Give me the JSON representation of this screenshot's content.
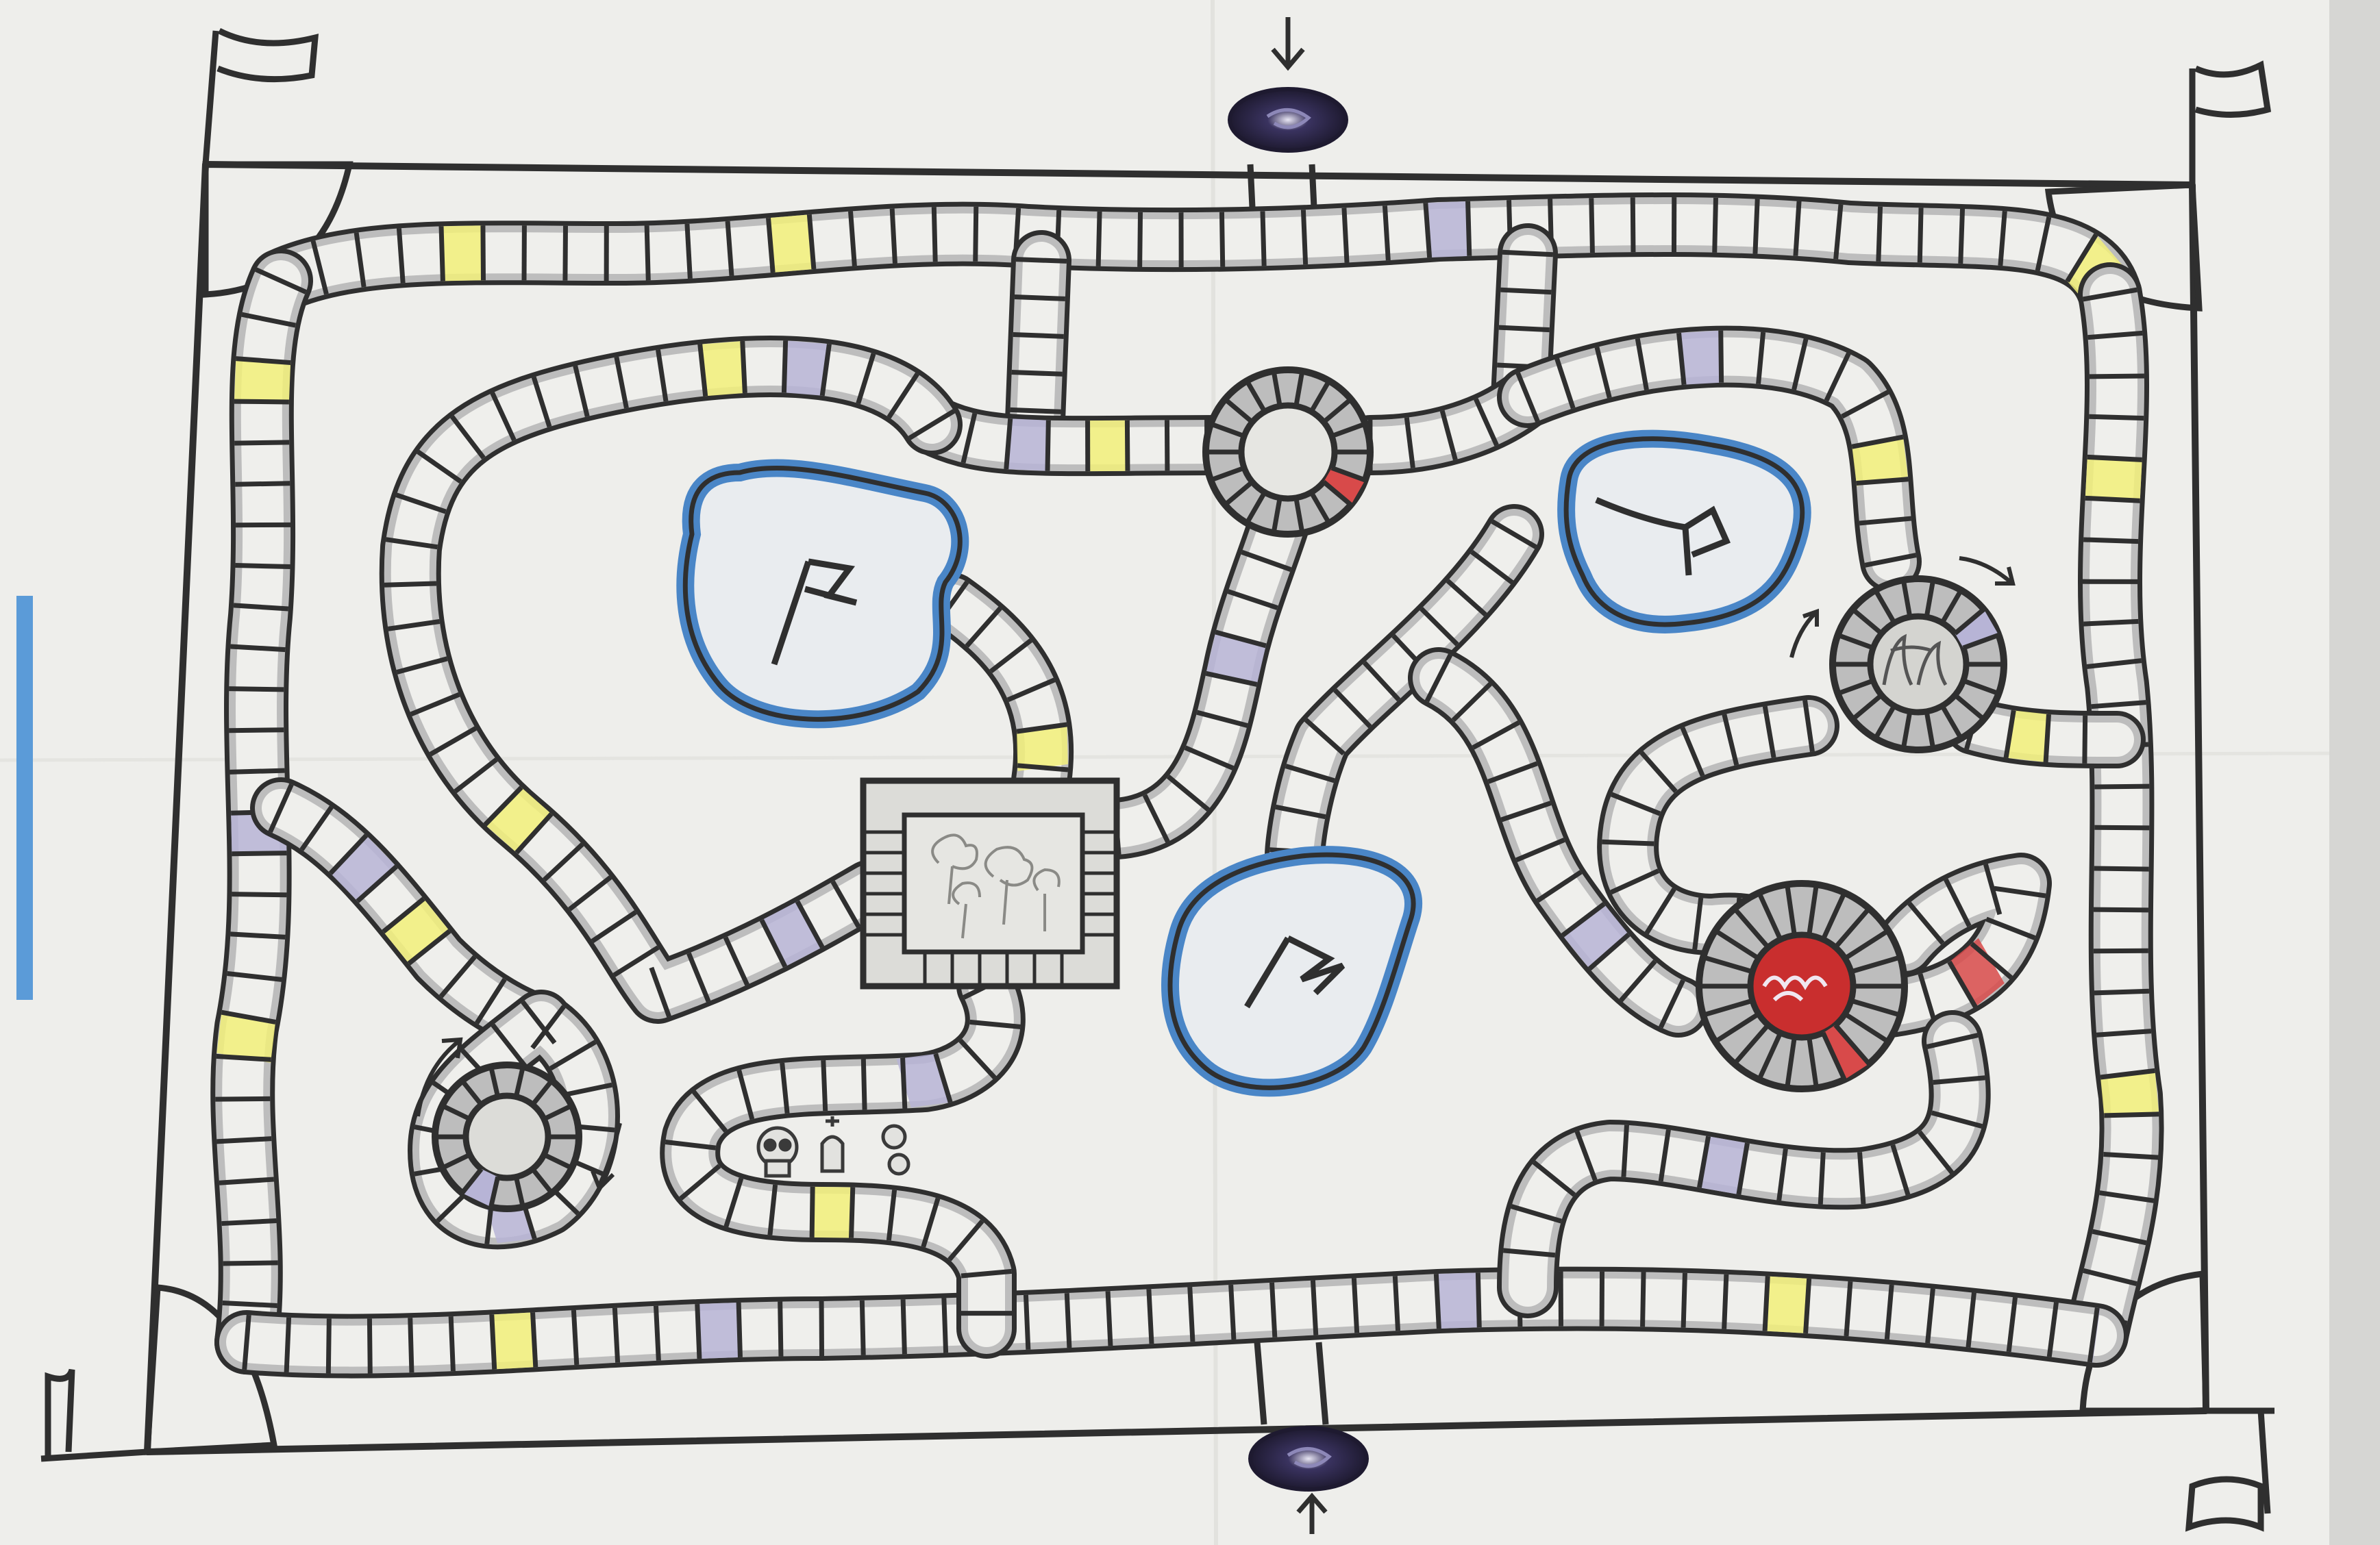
{
  "board": {
    "ink": "#2f2f2f",
    "paper": "#efefec",
    "track_fill": "#bdbdbd",
    "colors": {
      "yellow_space": "#f2f07a",
      "red_space": "#d84a4a",
      "lavender_space": "#b7b4d6",
      "water": "#4a86c7",
      "portal": "#2a2540",
      "center_red": "#c92e2e"
    },
    "corner_flags": [
      "flag-icon",
      "flag-icon",
      "flag-icon",
      "flag-icon"
    ],
    "island_flags": [
      "flag-icon",
      "flag-icon",
      "flag-icon"
    ],
    "graveyard_icons": [
      "skull-icon",
      "tombstone-icon",
      "bag-icon"
    ],
    "portals": [
      "portal-icon",
      "portal-icon"
    ],
    "arrows": [
      "arrow-down-icon",
      "arrow-up-icon",
      "rotate-arrow-icon",
      "rotate-arrow-icon"
    ]
  }
}
